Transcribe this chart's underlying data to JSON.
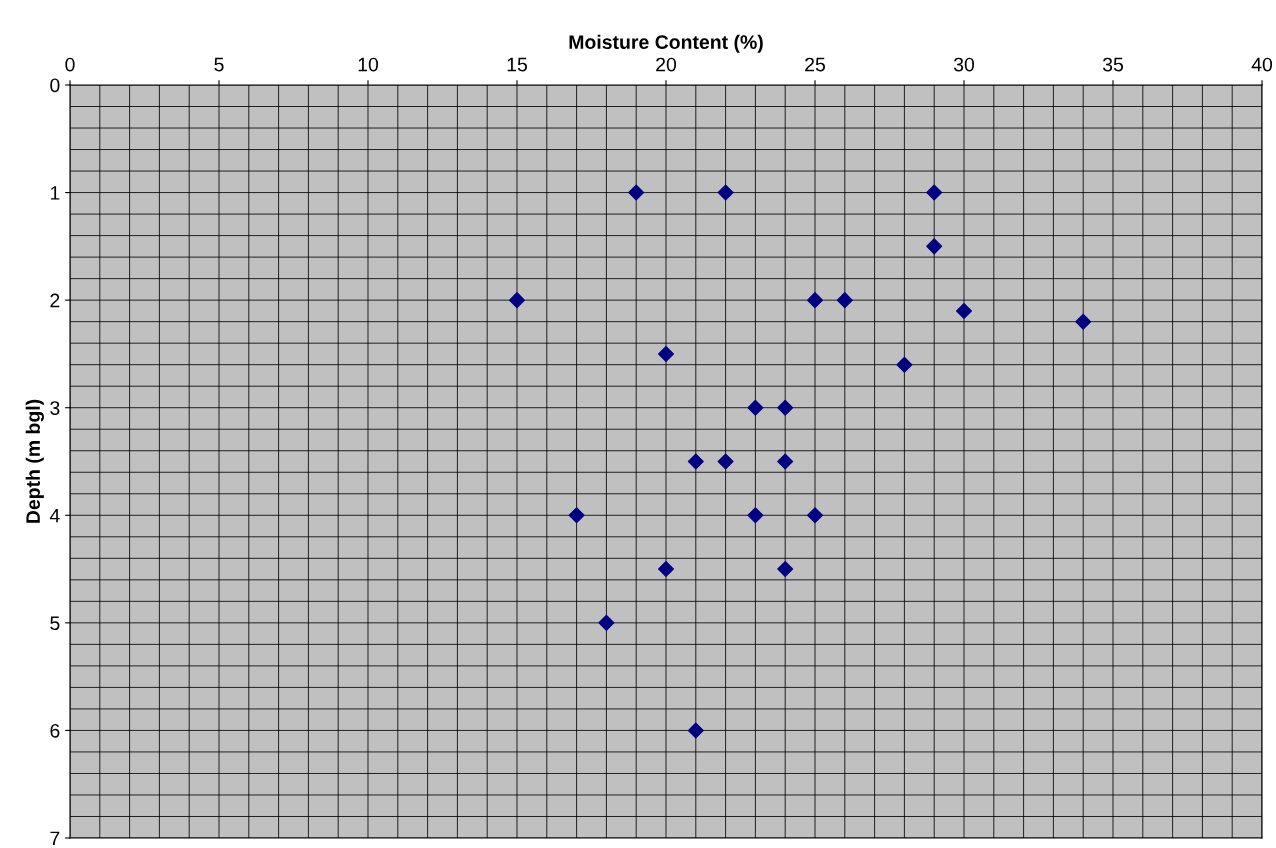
{
  "chart_data": {
    "type": "scatter",
    "xlabel": "Moisture Content (%)",
    "ylabel": "Depth (m bgl)",
    "xlim": [
      0,
      40
    ],
    "xticks": [
      0,
      5,
      10,
      15,
      20,
      25,
      30,
      35,
      40
    ],
    "ylim": [
      7,
      0
    ],
    "yticks": [
      0,
      1,
      2,
      3,
      4,
      5,
      6,
      7
    ],
    "grid": true,
    "marker": "diamond",
    "series": [
      {
        "color": "#000080",
        "x": [
          19,
          22,
          29,
          29,
          15,
          25,
          26,
          30,
          34,
          20,
          28,
          23,
          24,
          21,
          22,
          24,
          17,
          23,
          25,
          20,
          24,
          18,
          21
        ],
        "values": [
          1,
          1,
          1,
          1.5,
          2,
          2,
          2,
          2.1,
          2.2,
          2.5,
          2.6,
          3,
          3,
          3.5,
          3.5,
          3.5,
          4,
          4,
          4,
          4.5,
          4.5,
          5,
          6
        ]
      }
    ]
  }
}
